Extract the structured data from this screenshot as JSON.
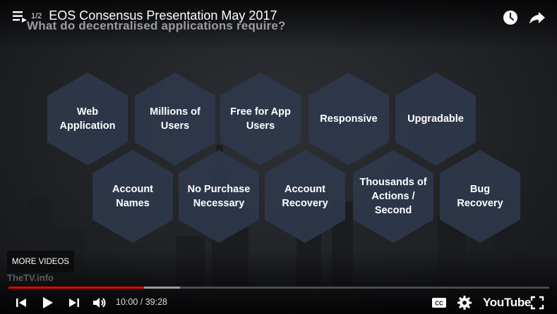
{
  "player": {
    "playlist_count": "1/2",
    "video_title": "EOS Consensus Presentation May 2017",
    "more_videos_label": "MORE VIDEOS",
    "watermark": "TheTV.info",
    "time_display": "10:00 / 39:28",
    "youtube_logo": "YouTube",
    "progress_played_fraction": 0.25,
    "progress_loaded_fraction": 0.317,
    "accent_color": "#ee0000"
  },
  "slide": {
    "heading": "What do decentralised applications require?",
    "hexagons_row1": [
      "Web\nApplication",
      "Millions of\nUsers",
      "Free for App\nUsers",
      "Responsive",
      "Upgradable"
    ],
    "hexagons_row2": [
      "Account\nNames",
      "No Purchase\nNecessary",
      "Account\nRecovery",
      "Thousands of\nActions /\nSecond",
      "Bug\nRecovery"
    ],
    "hex_fill_color": "#2f3a4d"
  },
  "icons": {
    "playlist": "playlist-icon",
    "watch_later": "clock-icon",
    "share": "share-arrow-icon",
    "previous": "skip-previous-icon",
    "play": "play-icon",
    "next": "skip-next-icon",
    "volume": "volume-icon",
    "captions": "cc-icon",
    "settings": "gear-icon",
    "fullscreen": "fullscreen-icon"
  }
}
